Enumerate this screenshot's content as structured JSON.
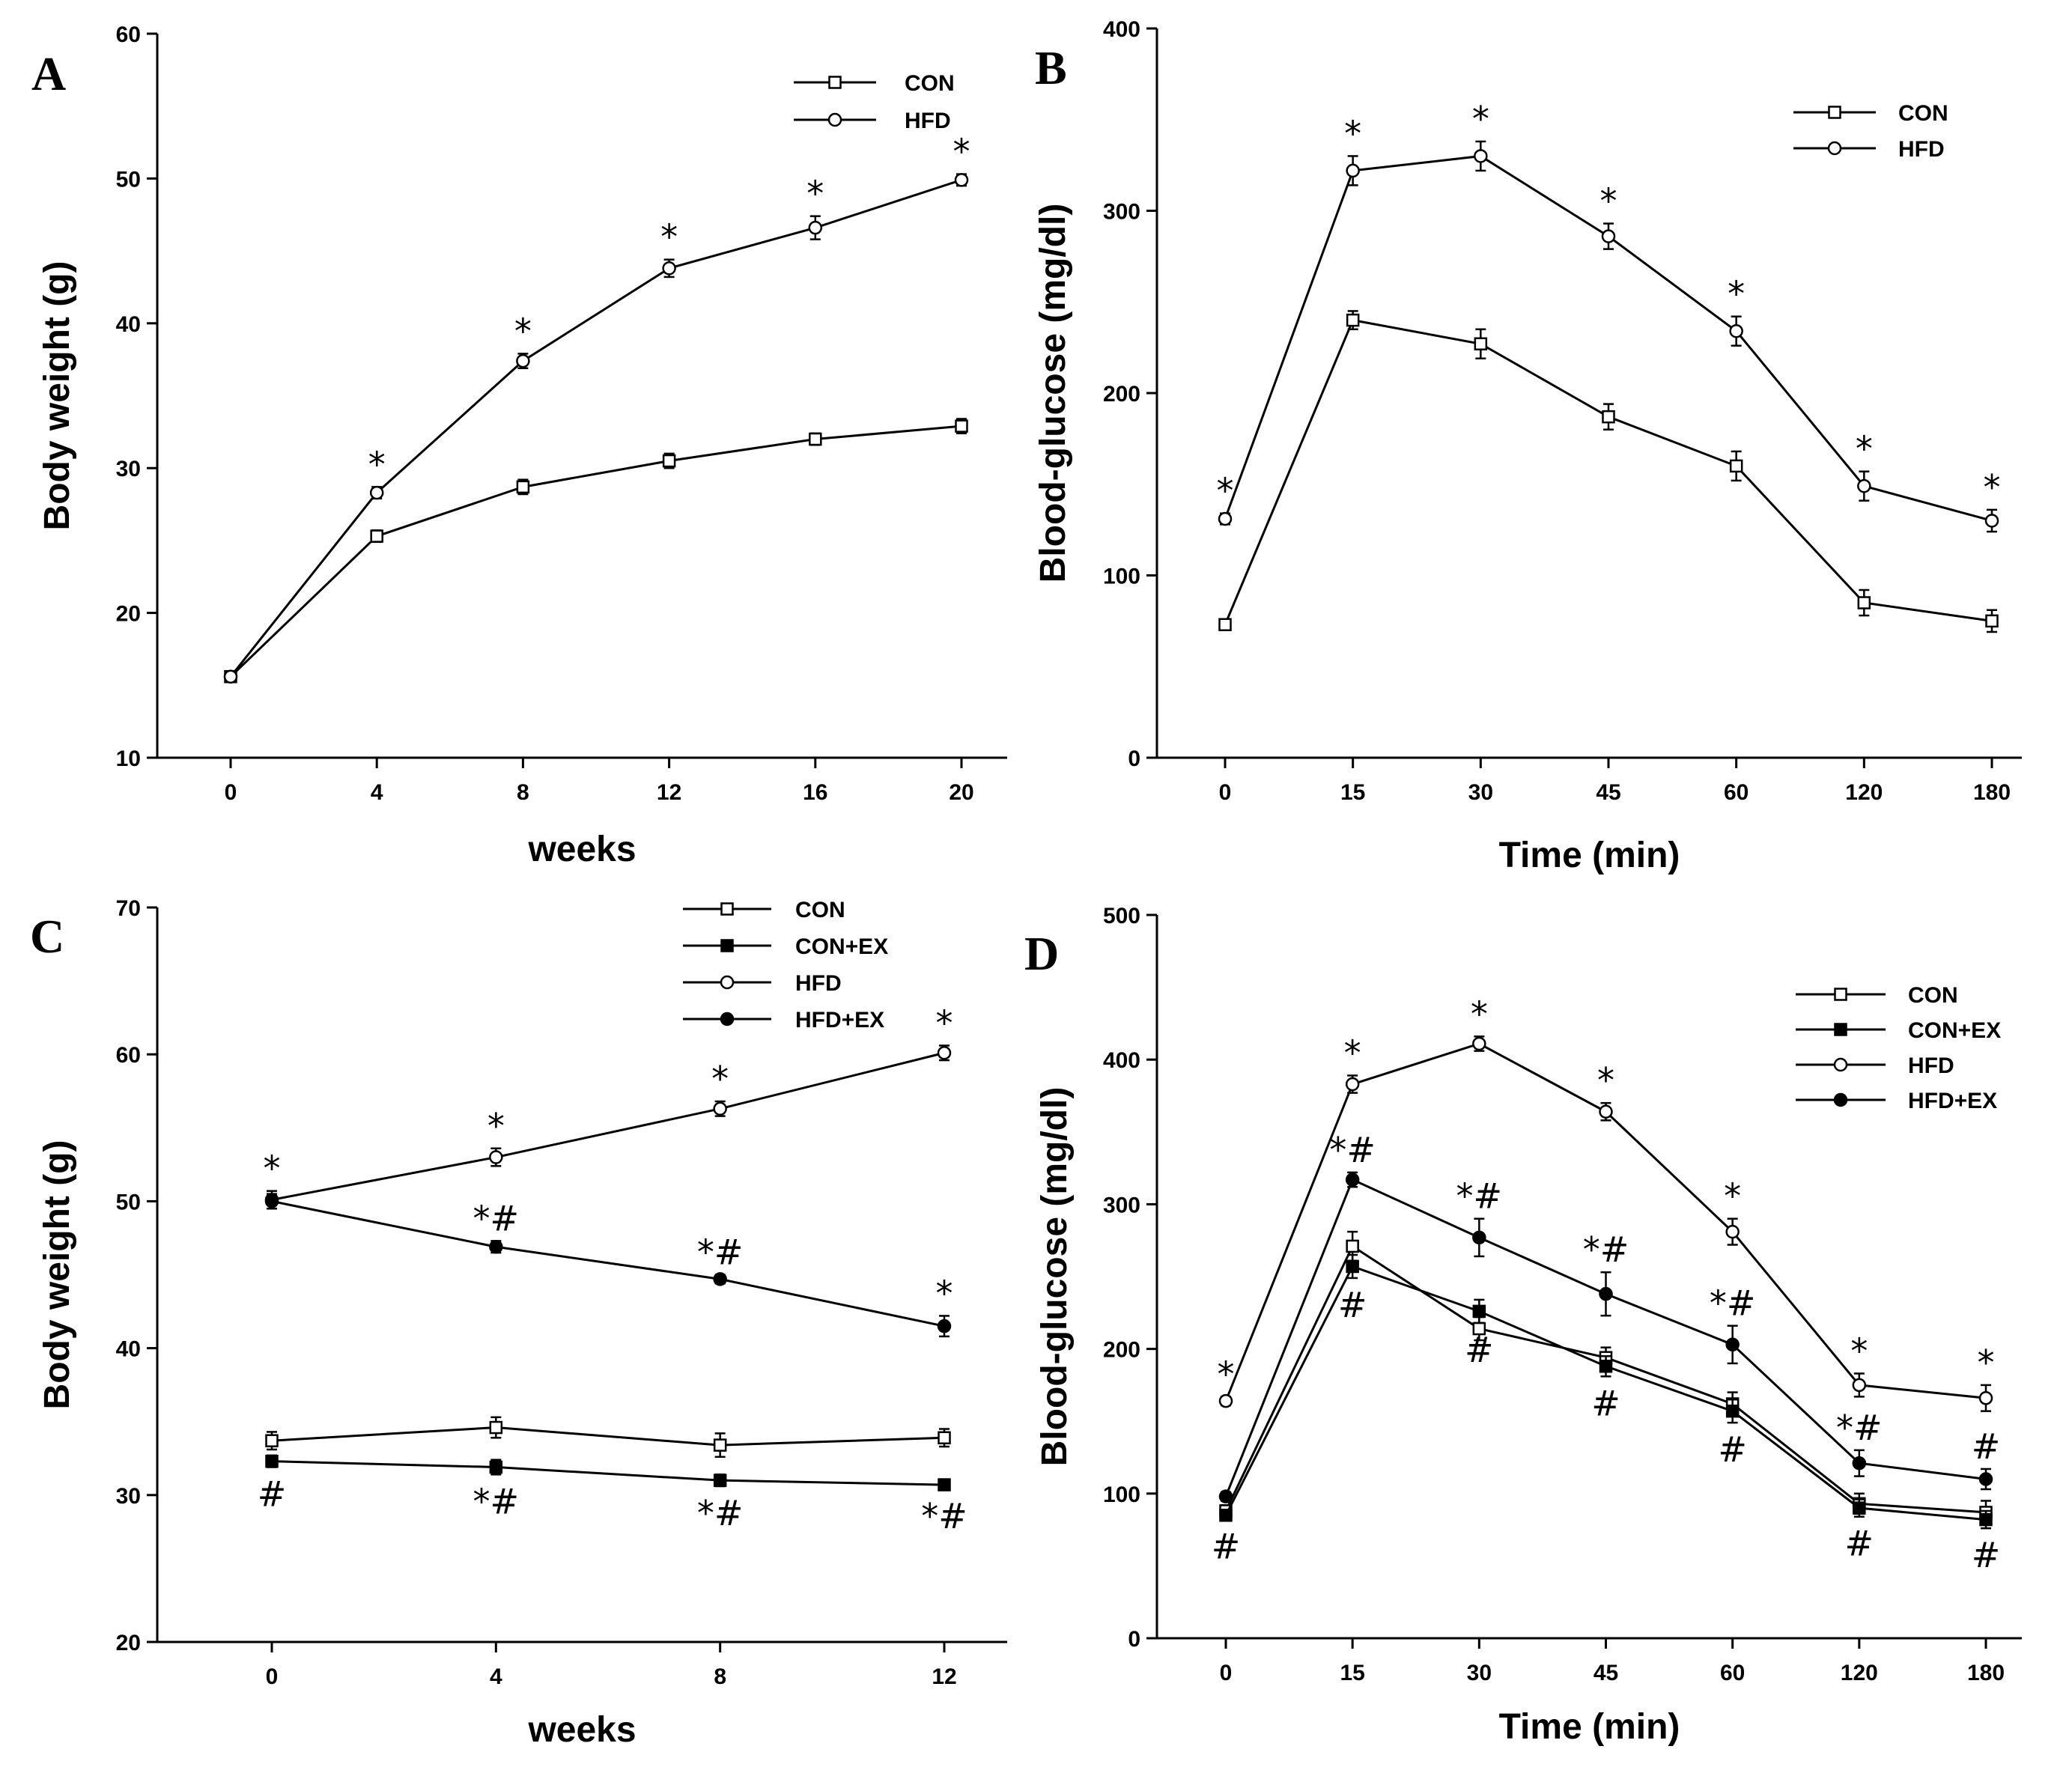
{
  "chart_data": [
    {
      "id": "A",
      "type": "line",
      "panel_label": "A",
      "xlabel": "weeks",
      "ylabel": "Body weight (g)",
      "categories": [
        "0",
        "4",
        "8",
        "12",
        "16",
        "20"
      ],
      "ylim": [
        10,
        60
      ],
      "yticks": [
        10,
        20,
        30,
        40,
        50,
        60
      ],
      "legend": "top-right",
      "series": [
        {
          "name": "CON",
          "marker": "open-square",
          "values": [
            15.6,
            25.3,
            28.7,
            30.5,
            32.0,
            32.9
          ],
          "errors": [
            0.3,
            0.4,
            0.5,
            0.5,
            0.4,
            0.5
          ],
          "sig": [
            "",
            "",
            "",
            "",
            "",
            ""
          ]
        },
        {
          "name": "HFD",
          "marker": "open-circle",
          "values": [
            15.6,
            28.3,
            37.4,
            43.8,
            46.6,
            49.9
          ],
          "errors": [
            0.3,
            0.4,
            0.5,
            0.6,
            0.8,
            0.4
          ],
          "sig": [
            "",
            "*",
            "*",
            "*",
            "*",
            "*"
          ]
        }
      ]
    },
    {
      "id": "B",
      "type": "line",
      "panel_label": "B",
      "xlabel": "Time (min)",
      "ylabel": "Blood-glucose (mg/dl)",
      "categories": [
        "0",
        "15",
        "30",
        "45",
        "60",
        "120",
        "180"
      ],
      "ylim": [
        0,
        400
      ],
      "yticks": [
        0,
        100,
        200,
        300,
        400
      ],
      "legend": "top-right",
      "series": [
        {
          "name": "CON",
          "marker": "open-square",
          "values": [
            73,
            240,
            227,
            187,
            160,
            85,
            75
          ],
          "errors": [
            3,
            5,
            8,
            7,
            8,
            7,
            6
          ],
          "sig": [
            "",
            "",
            "",
            "",
            "",
            "",
            ""
          ]
        },
        {
          "name": "HFD",
          "marker": "open-circle",
          "values": [
            131,
            322,
            330,
            286,
            234,
            149,
            130
          ],
          "errors": [
            3,
            8,
            8,
            7,
            8,
            8,
            6
          ],
          "sig": [
            "*",
            "*",
            "*",
            "*",
            "*",
            "*",
            "*"
          ]
        }
      ]
    },
    {
      "id": "C",
      "type": "line",
      "panel_label": "C",
      "xlabel": "weeks",
      "ylabel": "Body weight (g)",
      "categories": [
        "0",
        "4",
        "8",
        "12"
      ],
      "ylim": [
        20,
        70
      ],
      "yticks": [
        20,
        30,
        40,
        50,
        60,
        70
      ],
      "legend": "top-right",
      "series": [
        {
          "name": "CON",
          "marker": "open-square",
          "values": [
            33.7,
            34.6,
            33.4,
            33.9
          ],
          "errors": [
            0.6,
            0.7,
            0.8,
            0.6
          ],
          "sig_above": [
            "",
            "",
            "",
            ""
          ],
          "sig_below": [
            "",
            "",
            "",
            ""
          ]
        },
        {
          "name": "CON+EX",
          "marker": "filled-square",
          "values": [
            32.3,
            31.9,
            31.0,
            30.7
          ],
          "errors": [
            0.4,
            0.5,
            0.4,
            0.3
          ],
          "sig_above": [
            "",
            "",
            "",
            ""
          ],
          "sig_below": [
            "#",
            "*#",
            "*#",
            "*#"
          ]
        },
        {
          "name": "HFD",
          "marker": "open-circle",
          "values": [
            50.1,
            53.0,
            56.3,
            60.1
          ],
          "errors": [
            0.6,
            0.6,
            0.5,
            0.5
          ],
          "sig_above": [
            "*",
            "*",
            "*",
            "*"
          ],
          "sig_below": [
            "",
            "",
            "",
            ""
          ]
        },
        {
          "name": "HFD+EX",
          "marker": "filled-circle",
          "values": [
            50.0,
            46.9,
            44.7,
            41.5
          ],
          "errors": [
            0.5,
            0.4,
            0.3,
            0.7
          ],
          "sig_above": [
            "",
            "*#",
            "*#",
            "*"
          ],
          "sig_below": [
            "",
            "",
            "",
            ""
          ]
        }
      ]
    },
    {
      "id": "D",
      "type": "line",
      "panel_label": "D",
      "xlabel": "Time (min)",
      "ylabel": "Blood-glucose (mg/dl)",
      "categories": [
        "0",
        "15",
        "30",
        "45",
        "60",
        "120",
        "180"
      ],
      "ylim": [
        0,
        500
      ],
      "yticks": [
        0,
        100,
        200,
        300,
        400,
        500
      ],
      "legend": "top-right",
      "series": [
        {
          "name": "CON",
          "marker": "open-square",
          "values": [
            88,
            271,
            214,
            194,
            162,
            93,
            87
          ],
          "errors": [
            4,
            10,
            8,
            7,
            8,
            7,
            8
          ],
          "sig_above": [
            "",
            "",
            "",
            "",
            "",
            "",
            ""
          ],
          "sig_below": [
            "",
            "",
            "",
            "",
            "",
            "",
            ""
          ]
        },
        {
          "name": "CON+EX",
          "marker": "filled-square",
          "values": [
            85,
            257,
            226,
            188,
            157,
            90,
            82
          ],
          "errors": [
            3,
            8,
            8,
            7,
            8,
            6,
            6
          ],
          "sig_above": [
            "",
            "",
            "",
            "",
            "",
            "",
            ""
          ],
          "sig_below": [
            "#",
            "#",
            "#",
            "#",
            "#",
            "#",
            "#"
          ]
        },
        {
          "name": "HFD",
          "marker": "open-circle",
          "values": [
            164,
            383,
            411,
            364,
            281,
            175,
            166
          ],
          "errors": [
            3,
            6,
            5,
            6,
            9,
            8,
            9
          ],
          "sig_above": [
            "*",
            "*",
            "*",
            "*",
            "*",
            "*",
            "*"
          ],
          "sig_below": [
            "",
            "",
            "",
            "",
            "",
            "",
            ""
          ]
        },
        {
          "name": "HFD+EX",
          "marker": "filled-circle",
          "values": [
            98,
            317,
            277,
            238,
            203,
            121,
            110
          ],
          "errors": [
            3,
            5,
            13,
            15,
            13,
            9,
            7
          ],
          "sig_above": [
            "",
            "*#",
            "*#",
            "*#",
            "*#",
            "*#",
            "#"
          ],
          "sig_below": [
            "",
            "",
            "",
            "",
            "",
            "",
            ""
          ]
        }
      ]
    }
  ]
}
